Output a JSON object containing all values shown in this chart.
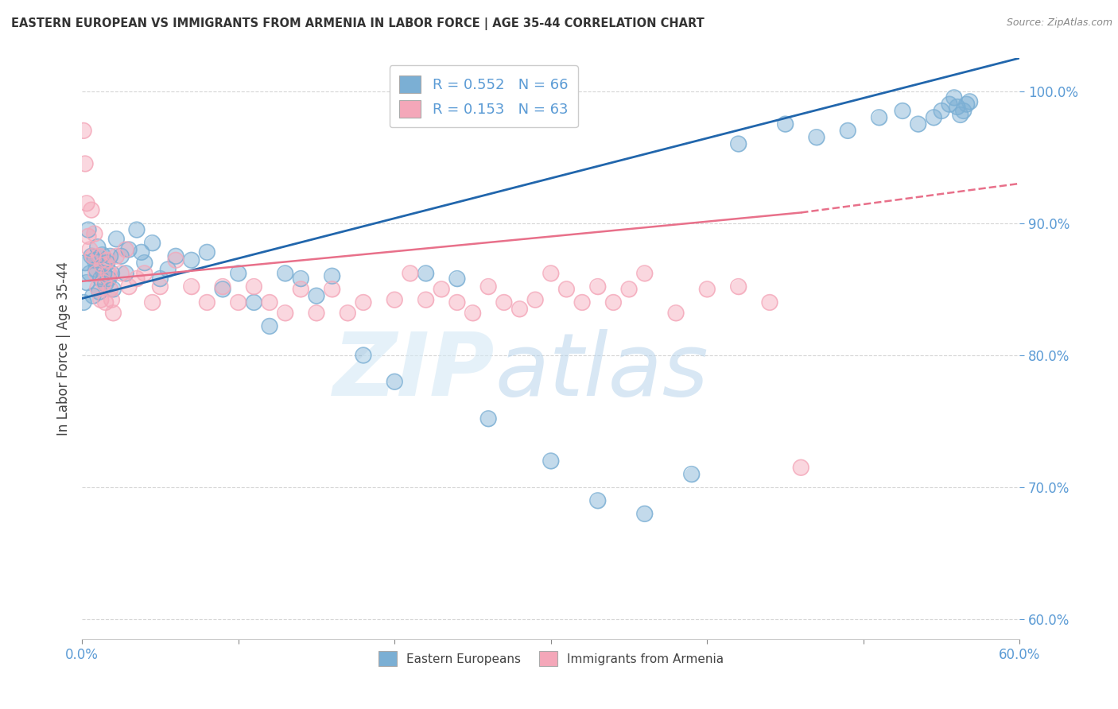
{
  "title": "EASTERN EUROPEAN VS IMMIGRANTS FROM ARMENIA IN LABOR FORCE | AGE 35-44 CORRELATION CHART",
  "source": "Source: ZipAtlas.com",
  "ylabel": "In Labor Force | Age 35-44",
  "y_ticks": [
    0.6,
    0.7,
    0.8,
    0.9,
    1.0
  ],
  "y_tick_labels": [
    "60.0%",
    "70.0%",
    "80.0%",
    "90.0%",
    "100.0%"
  ],
  "x_range": [
    0.0,
    0.6
  ],
  "y_range": [
    0.585,
    1.025
  ],
  "blue_R": 0.552,
  "blue_N": 66,
  "pink_R": 0.153,
  "pink_N": 63,
  "blue_color": "#7bafd4",
  "pink_color": "#f4a7b9",
  "blue_line_color": "#2166ac",
  "pink_line_color": "#e8708a",
  "legend_blue_label": "R = 0.552   N = 66",
  "legend_pink_label": "R = 0.153   N = 63",
  "blue_x": [
    0.001,
    0.002,
    0.003,
    0.004,
    0.005,
    0.006,
    0.007,
    0.008,
    0.009,
    0.01,
    0.011,
    0.012,
    0.013,
    0.014,
    0.015,
    0.016,
    0.017,
    0.018,
    0.019,
    0.02,
    0.022,
    0.025,
    0.028,
    0.03,
    0.035,
    0.038,
    0.04,
    0.045,
    0.05,
    0.055,
    0.06,
    0.07,
    0.08,
    0.09,
    0.1,
    0.11,
    0.12,
    0.13,
    0.14,
    0.15,
    0.16,
    0.18,
    0.2,
    0.22,
    0.24,
    0.26,
    0.3,
    0.33,
    0.36,
    0.39,
    0.42,
    0.45,
    0.47,
    0.49,
    0.51,
    0.525,
    0.535,
    0.545,
    0.55,
    0.555,
    0.558,
    0.56,
    0.562,
    0.564,
    0.566,
    0.568
  ],
  "blue_y": [
    0.84,
    0.87,
    0.855,
    0.895,
    0.862,
    0.875,
    0.845,
    0.872,
    0.865,
    0.882,
    0.848,
    0.858,
    0.876,
    0.862,
    0.854,
    0.87,
    0.858,
    0.875,
    0.862,
    0.85,
    0.888,
    0.875,
    0.862,
    0.88,
    0.895,
    0.878,
    0.87,
    0.885,
    0.858,
    0.865,
    0.875,
    0.872,
    0.878,
    0.85,
    0.862,
    0.84,
    0.822,
    0.862,
    0.858,
    0.845,
    0.86,
    0.8,
    0.78,
    0.862,
    0.858,
    0.752,
    0.72,
    0.69,
    0.68,
    0.71,
    0.96,
    0.975,
    0.965,
    0.97,
    0.98,
    0.985,
    0.975,
    0.98,
    0.985,
    0.99,
    0.995,
    0.988,
    0.982,
    0.985,
    0.99,
    0.992
  ],
  "pink_x": [
    0.001,
    0.002,
    0.003,
    0.004,
    0.005,
    0.006,
    0.007,
    0.008,
    0.009,
    0.01,
    0.011,
    0.012,
    0.013,
    0.014,
    0.015,
    0.016,
    0.017,
    0.018,
    0.019,
    0.02,
    0.022,
    0.025,
    0.028,
    0.03,
    0.035,
    0.04,
    0.045,
    0.05,
    0.06,
    0.07,
    0.08,
    0.09,
    0.1,
    0.11,
    0.12,
    0.13,
    0.14,
    0.15,
    0.16,
    0.17,
    0.18,
    0.2,
    0.21,
    0.22,
    0.23,
    0.24,
    0.25,
    0.26,
    0.27,
    0.28,
    0.29,
    0.3,
    0.31,
    0.32,
    0.33,
    0.34,
    0.35,
    0.36,
    0.38,
    0.4,
    0.42,
    0.44,
    0.46
  ],
  "pink_y": [
    0.97,
    0.945,
    0.915,
    0.89,
    0.88,
    0.91,
    0.875,
    0.892,
    0.862,
    0.851,
    0.875,
    0.842,
    0.868,
    0.855,
    0.84,
    0.872,
    0.862,
    0.85,
    0.842,
    0.832,
    0.875,
    0.862,
    0.88,
    0.852,
    0.858,
    0.862,
    0.84,
    0.852,
    0.872,
    0.852,
    0.84,
    0.852,
    0.84,
    0.852,
    0.84,
    0.832,
    0.85,
    0.832,
    0.85,
    0.832,
    0.84,
    0.842,
    0.862,
    0.842,
    0.85,
    0.84,
    0.832,
    0.852,
    0.84,
    0.835,
    0.842,
    0.862,
    0.85,
    0.84,
    0.852,
    0.84,
    0.85,
    0.862,
    0.832,
    0.85,
    0.852,
    0.84,
    0.715
  ]
}
